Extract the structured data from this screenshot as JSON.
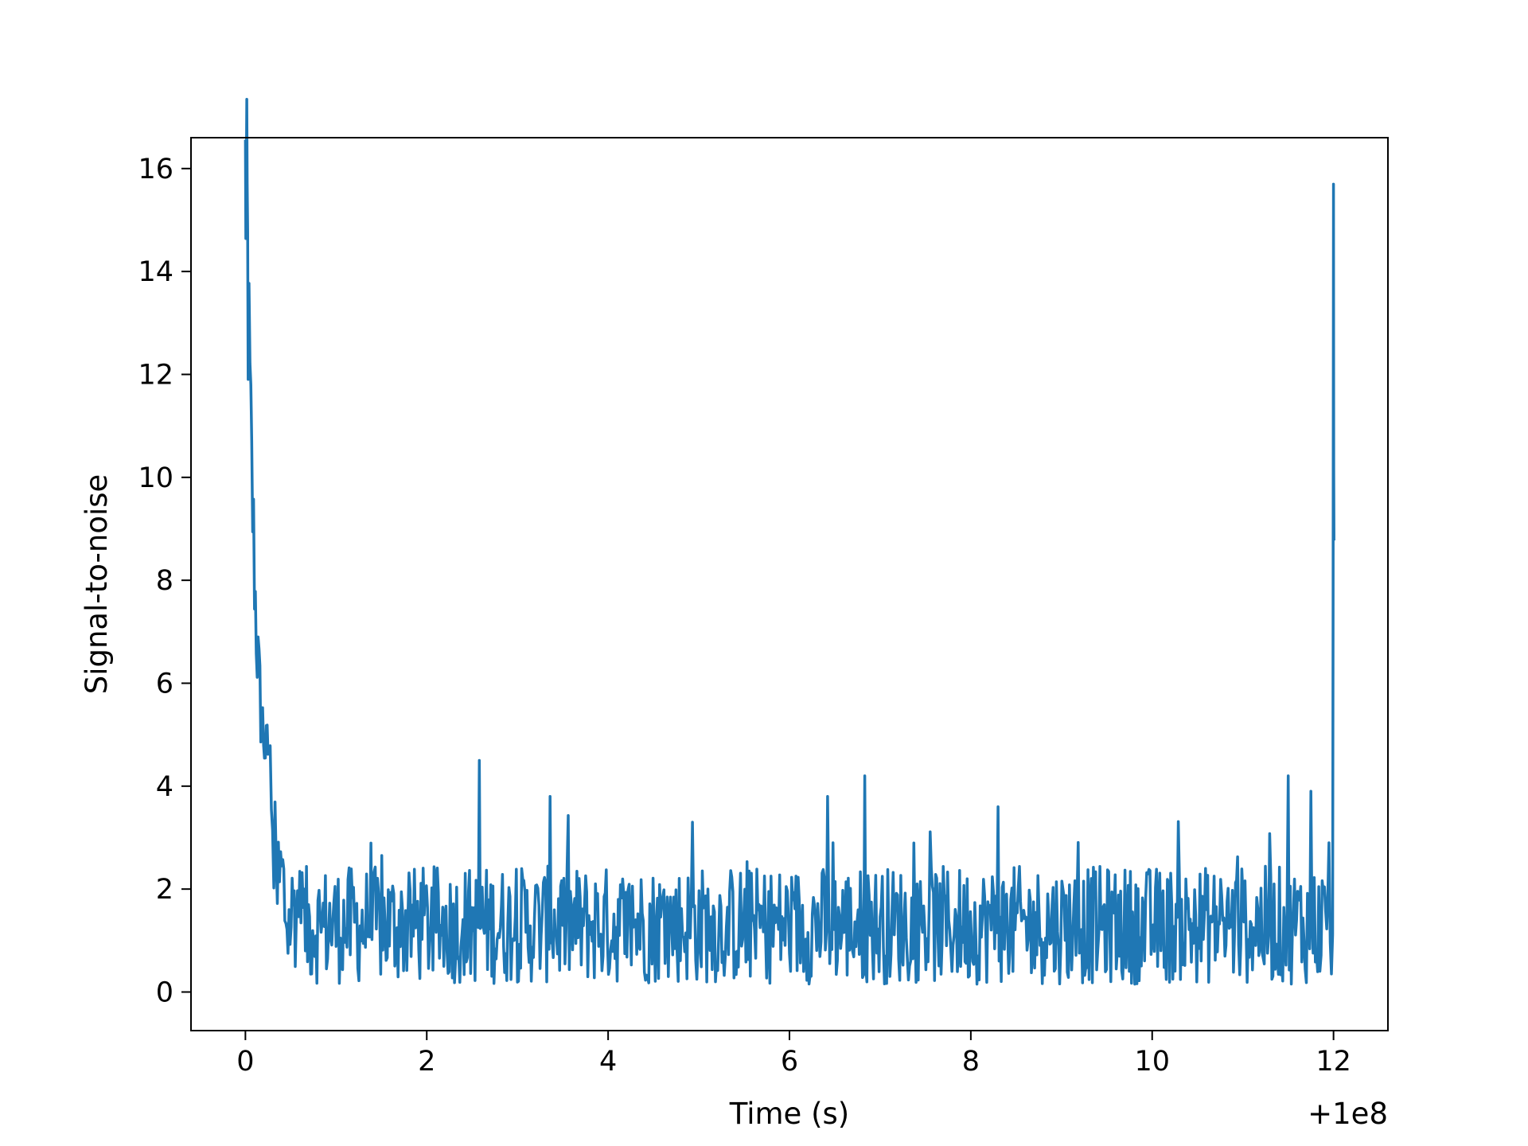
{
  "chart_data": {
    "type": "line",
    "title": "",
    "xlabel": "Time (s)",
    "ylabel": "Signal-to-noise",
    "x_offset_label": "+1e8",
    "xlim": [
      -0.6,
      12.6
    ],
    "ylim": [
      -0.75,
      16.6
    ],
    "xticks": [
      0,
      2,
      4,
      6,
      8,
      10,
      12
    ],
    "yticks": [
      0,
      2,
      4,
      6,
      8,
      10,
      12,
      14,
      16
    ],
    "grid": false,
    "line_color": "#1f77b4",
    "series": [
      {
        "x": [
          0.0,
          0.01,
          0.02,
          0.03,
          0.05,
          0.07,
          0.09,
          0.11,
          0.13,
          0.15,
          0.17,
          0.2,
          0.23,
          0.26,
          0.3,
          0.34,
          0.4,
          0.47,
          0.55,
          0.65,
          0.8,
          1.0,
          1.3,
          1.6,
          1.9,
          2.2,
          2.4,
          2.58,
          2.6,
          2.8,
          3.0,
          3.2,
          3.36,
          3.5,
          3.8,
          4.1,
          4.4,
          4.7,
          4.93,
          5.1,
          5.4,
          5.7,
          6.0,
          6.3,
          6.42,
          6.6,
          6.83,
          7.0,
          7.3,
          7.6,
          7.9,
          8.2,
          8.3,
          8.5,
          8.8,
          9.1,
          9.4,
          9.7,
          10.0,
          10.3,
          10.6,
          10.85,
          11.0,
          11.2,
          11.5,
          11.65,
          11.75,
          11.85,
          11.95,
          11.99,
          12.0,
          12.005
        ],
        "y": [
          15.8,
          15.3,
          14.9,
          13.2,
          11.5,
          10.0,
          8.8,
          7.6,
          6.7,
          6.0,
          5.5,
          5.0,
          4.6,
          4.8,
          3.5,
          2.3,
          2.7,
          1.5,
          2.2,
          1.3,
          1.6,
          1.2,
          1.1,
          1.4,
          1.0,
          1.6,
          1.2,
          4.5,
          1.1,
          1.3,
          1.0,
          1.4,
          3.8,
          1.1,
          1.2,
          1.0,
          1.3,
          1.4,
          3.3,
          1.1,
          1.0,
          1.2,
          1.1,
          1.3,
          3.8,
          1.0,
          4.2,
          1.1,
          1.2,
          1.0,
          1.3,
          1.1,
          3.6,
          1.2,
          1.0,
          1.1,
          1.3,
          1.0,
          1.4,
          1.1,
          1.3,
          1.2,
          1.5,
          1.1,
          4.2,
          1.3,
          3.9,
          1.2,
          2.9,
          1.0,
          14.3,
          8.8
        ]
      }
    ]
  }
}
